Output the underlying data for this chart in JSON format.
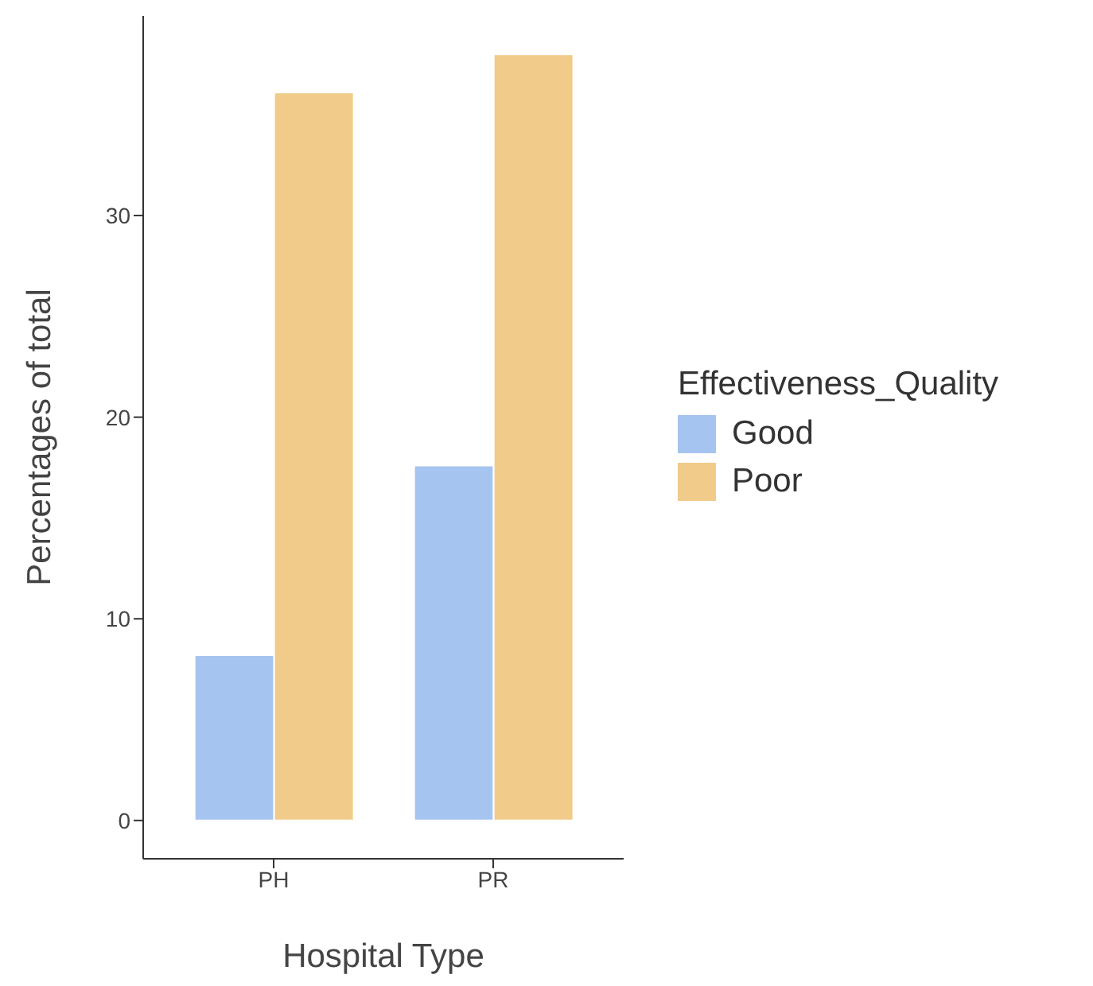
{
  "chart_data": {
    "type": "bar",
    "xlabel": "Hospital Type",
    "ylabel": "Percentages of total",
    "legend_title": "Effectiveness_Quality",
    "categories": [
      "PH",
      "PR"
    ],
    "series": [
      {
        "name": "Good",
        "color": "#a6c4f0",
        "values": [
          8.2,
          17.6
        ]
      },
      {
        "name": "Poor",
        "color": "#f0cb8a",
        "values": [
          36.1,
          38.0
        ]
      }
    ],
    "ylim": [
      -1.9,
      39.9
    ],
    "yticks": [
      0,
      10,
      20,
      30
    ],
    "grid": false,
    "legend": "right"
  }
}
